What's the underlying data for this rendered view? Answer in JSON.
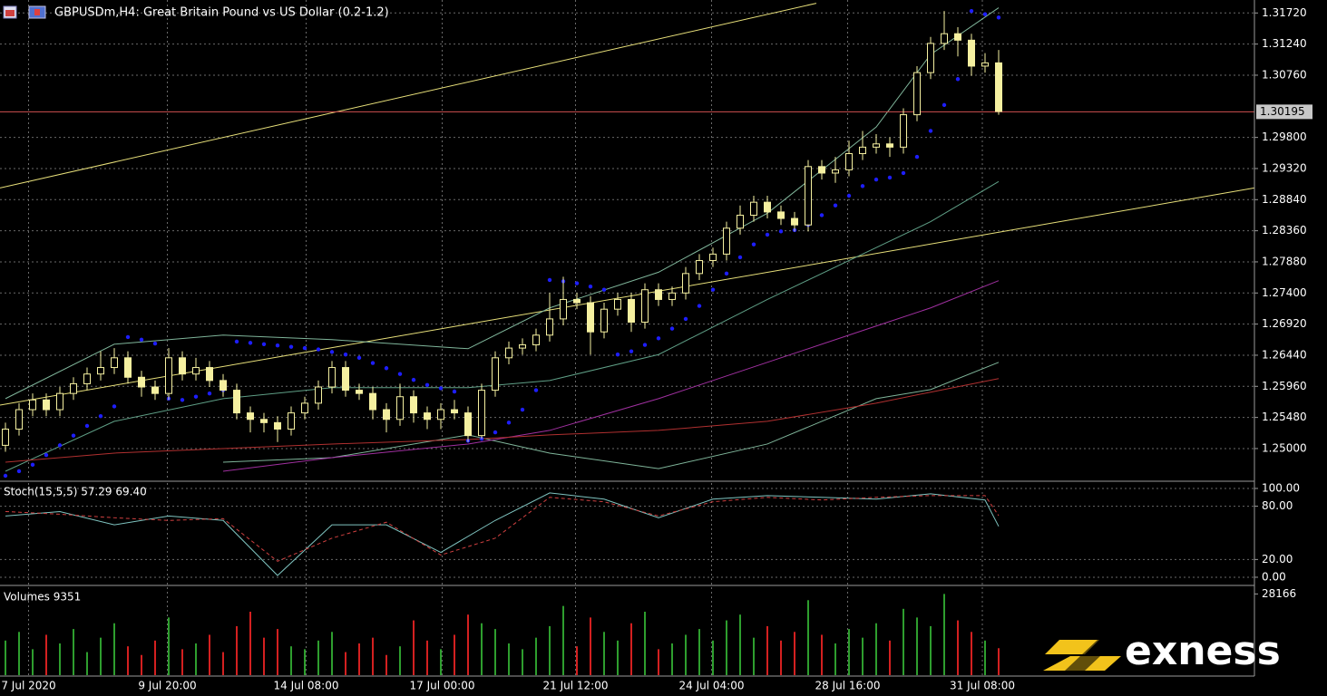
{
  "header": {
    "title": "GBPUSDm,H4:  Great Britain Pound vs US Dollar (0.2-1.2)"
  },
  "watermark": "exness",
  "chart_data": [
    {
      "type": "candlestick",
      "color": "#f5f0a0",
      "up_color": "#000000",
      "open": [
        1.2505,
        1.253,
        1.256,
        1.2575,
        1.256,
        1.2585,
        1.26,
        1.2615,
        1.2625,
        1.264,
        1.261,
        1.2595,
        1.2585,
        1.264,
        1.2615,
        1.2625,
        1.2605,
        1.259,
        1.2555,
        1.2545,
        1.254,
        1.253,
        1.2555,
        1.257,
        1.2595,
        1.2625,
        1.259,
        1.2585,
        1.256,
        1.2545,
        1.258,
        1.2555,
        1.2545,
        1.256,
        1.2555,
        1.252,
        1.259,
        1.264,
        1.2655,
        1.266,
        1.2675,
        1.27,
        1.273,
        1.2725,
        1.268,
        1.2715,
        1.273,
        1.2695,
        1.2745,
        1.273,
        1.274,
        1.277,
        1.279,
        1.28,
        1.284,
        1.286,
        1.288,
        1.2865,
        1.2855,
        1.2845,
        1.2935,
        1.2925,
        1.293,
        1.2955,
        1.2965,
        1.297,
        1.2965,
        1.3015,
        1.308,
        1.3125,
        1.314,
        1.313,
        1.309,
        1.3095
      ],
      "high": [
        1.254,
        1.257,
        1.2585,
        1.2585,
        1.2595,
        1.261,
        1.2625,
        1.265,
        1.2655,
        1.265,
        1.262,
        1.2605,
        1.2655,
        1.265,
        1.264,
        1.2635,
        1.2615,
        1.26,
        1.2565,
        1.2555,
        1.255,
        1.2565,
        1.258,
        1.2605,
        1.2635,
        1.2635,
        1.26,
        1.2595,
        1.257,
        1.26,
        1.259,
        1.2565,
        1.257,
        1.2575,
        1.2565,
        1.26,
        1.265,
        1.2665,
        1.267,
        1.2685,
        1.274,
        1.2765,
        1.274,
        1.2735,
        1.2725,
        1.274,
        1.274,
        1.2755,
        1.2755,
        1.275,
        1.278,
        1.28,
        1.281,
        1.285,
        1.2875,
        1.289,
        1.289,
        1.2875,
        1.2865,
        1.2945,
        1.2945,
        1.295,
        1.2975,
        1.299,
        1.2985,
        1.298,
        1.3025,
        1.309,
        1.3135,
        1.3175,
        1.315,
        1.314,
        1.311,
        1.3115
      ],
      "low": [
        1.2495,
        1.252,
        1.255,
        1.255,
        1.255,
        1.2575,
        1.259,
        1.2605,
        1.2615,
        1.26,
        1.258,
        1.2575,
        1.2575,
        1.2605,
        1.2605,
        1.2595,
        1.258,
        1.2545,
        1.2525,
        1.2525,
        1.251,
        1.252,
        1.2545,
        1.256,
        1.2585,
        1.258,
        1.2575,
        1.2545,
        1.2525,
        1.2535,
        1.254,
        1.253,
        1.253,
        1.2545,
        1.251,
        1.2515,
        1.258,
        1.263,
        1.2645,
        1.265,
        1.2665,
        1.269,
        1.2715,
        1.2645,
        1.267,
        1.2705,
        1.268,
        1.2685,
        1.272,
        1.272,
        1.273,
        1.276,
        1.278,
        1.279,
        1.283,
        1.285,
        1.2855,
        1.2845,
        1.2835,
        1.2835,
        1.2915,
        1.291,
        1.292,
        1.2945,
        1.2955,
        1.295,
        1.2955,
        1.3005,
        1.307,
        1.3115,
        1.3105,
        1.3075,
        1.308,
        1.3015
      ],
      "close": [
        1.253,
        1.256,
        1.2575,
        1.256,
        1.2585,
        1.26,
        1.2615,
        1.2625,
        1.264,
        1.261,
        1.2595,
        1.2585,
        1.264,
        1.2615,
        1.2625,
        1.2605,
        1.259,
        1.2555,
        1.2545,
        1.254,
        1.253,
        1.2555,
        1.257,
        1.2595,
        1.2625,
        1.259,
        1.2585,
        1.256,
        1.2545,
        1.258,
        1.2555,
        1.2545,
        1.256,
        1.2555,
        1.252,
        1.259,
        1.264,
        1.2655,
        1.266,
        1.2675,
        1.27,
        1.273,
        1.2725,
        1.268,
        1.2715,
        1.273,
        1.2695,
        1.2745,
        1.273,
        1.274,
        1.277,
        1.279,
        1.28,
        1.284,
        1.286,
        1.288,
        1.2865,
        1.2855,
        1.2845,
        1.2935,
        1.2925,
        1.293,
        1.2955,
        1.2965,
        1.297,
        1.2965,
        1.3015,
        1.308,
        1.3125,
        1.314,
        1.313,
        1.309,
        1.3095,
        1.302
      ],
      "xlim": [
        -0.4,
        91.8
      ],
      "xticks": [
        {
          "value": 1.7,
          "label": "7 Jul 2020"
        },
        {
          "value": 11.9,
          "label": "9 Jul 20:00"
        },
        {
          "value": 22.1,
          "label": "14 Jul 08:00"
        },
        {
          "value": 32.1,
          "label": "17 Jul 00:00"
        },
        {
          "value": 41.9,
          "label": "21 Jul 12:00"
        },
        {
          "value": 51.9,
          "label": "24 Jul 04:00"
        },
        {
          "value": 61.9,
          "label": "28 Jul 16:00"
        },
        {
          "value": 71.8,
          "label": "31 Jul 08:00"
        }
      ],
      "ylim": [
        1.2451,
        1.3192
      ],
      "yticks": [
        {
          "value": 1.3172,
          "label": "1.31720"
        },
        {
          "value": 1.3124,
          "label": "1.31240"
        },
        {
          "value": 1.3076,
          "label": "1.30760"
        },
        {
          "value": 1.298,
          "label": "1.29800"
        },
        {
          "value": 1.2932,
          "label": "1.29320"
        },
        {
          "value": 1.2884,
          "label": "1.28840"
        },
        {
          "value": 1.2836,
          "label": "1.28360"
        },
        {
          "value": 1.2788,
          "label": "1.27880"
        },
        {
          "value": 1.274,
          "label": "1.27400"
        },
        {
          "value": 1.2692,
          "label": "1.26920"
        },
        {
          "value": 1.2644,
          "label": "1.26440"
        },
        {
          "value": 1.2596,
          "label": "1.25960"
        },
        {
          "value": 1.2548,
          "label": "1.25480"
        },
        {
          "value": 1.25,
          "label": "1.25000"
        }
      ],
      "grid": true,
      "current_price": {
        "value": 1.30195,
        "label": "1.30195"
      },
      "current_price_color": "#d05050",
      "trendlines": [
        {
          "color": "#e8e07a",
          "x": [
            -0.4,
            59.6
          ],
          "values": [
            1.2902,
            1.3187
          ]
        },
        {
          "color": "#e8e07a",
          "x": [
            -0.4,
            91.8
          ],
          "values": [
            1.2567,
            1.2902
          ]
        }
      ],
      "overlays": {
        "x": [
          0,
          8,
          16,
          24,
          34,
          40,
          48,
          56,
          64,
          68,
          73
        ],
        "series": [
          {
            "color": "#7fb59a",
            "values": [
              1.2577,
              1.2661,
              1.2675,
              1.2668,
              1.2654,
              1.2717,
              1.2772,
              1.2863,
              1.2996,
              1.3108,
              1.318
            ]
          },
          {
            "color": "#5f9f86",
            "values": [
              1.2465,
              1.2542,
              1.2577,
              1.2594,
              1.2594,
              1.2605,
              1.2645,
              1.273,
              1.281,
              1.285,
              1.2912
            ]
          },
          {
            "color": "#7fb59a",
            "values": [
              null,
              null,
              1.2479,
              1.2486,
              1.2521,
              1.2493,
              1.2469,
              1.2507,
              1.2577,
              1.2591,
              1.2633
            ]
          },
          {
            "color": "#a030a0",
            "values": [
              null,
              null,
              1.2465,
              1.2486,
              1.2507,
              1.2528,
              1.2577,
              1.2633,
              1.2689,
              1.2717,
              1.2759
            ]
          },
          {
            "color": "#b03030",
            "values": [
              1.2479,
              1.2493,
              1.25,
              1.2507,
              1.2514,
              1.2521,
              1.2528,
              1.2542,
              1.257,
              1.2587,
              1.2608
            ]
          }
        ]
      },
      "sar": {
        "color": "#1e1eff",
        "values": [
          1.2458,
          1.2465,
          1.2475,
          1.249,
          1.2505,
          1.252,
          1.2535,
          1.255,
          1.2565,
          1.2672,
          1.2668,
          1.2662,
          1.2577,
          1.2575,
          1.258,
          1.2585,
          1.259,
          1.2665,
          1.2663,
          1.2661,
          1.2659,
          1.2657,
          1.2655,
          1.2653,
          1.2649,
          1.2645,
          1.264,
          1.2632,
          1.2624,
          1.2615,
          1.2606,
          1.2598,
          1.2593,
          1.2588,
          1.2512,
          1.2515,
          1.2525,
          1.254,
          1.256,
          1.259,
          1.276,
          1.2758,
          1.2755,
          1.275,
          1.2745,
          1.2645,
          1.265,
          1.266,
          1.267,
          1.2685,
          1.27,
          1.272,
          1.2745,
          1.277,
          1.2795,
          1.2815,
          1.283,
          1.2835,
          1.2837,
          1.2845,
          1.286,
          1.2875,
          1.289,
          1.2905,
          1.2915,
          1.2918,
          1.2925,
          1.295,
          1.299,
          1.303,
          1.307,
          1.3175,
          1.317,
          1.3165
        ]
      }
    },
    {
      "type": "line",
      "title": "Stoch(15,5,5) 57.29 69.40",
      "x": [
        0,
        4,
        8,
        12,
        16,
        20,
        24,
        28,
        32,
        36,
        40,
        44,
        48,
        52,
        56,
        60,
        64,
        68,
        72,
        73
      ],
      "series": [
        {
          "color": "#7fc4c0",
          "values": [
            69,
            74,
            59,
            69,
            64,
            2,
            59,
            59,
            28,
            64,
            95,
            88,
            67,
            88,
            92,
            90,
            88,
            94,
            87,
            57.29
          ]
        },
        {
          "color": "#d04040",
          "dashed": true,
          "values": [
            74,
            71,
            67,
            64,
            66,
            18,
            44,
            62,
            25,
            44,
            90,
            85,
            69,
            85,
            90,
            87,
            90,
            92,
            92,
            69.4
          ]
        }
      ],
      "ylim": [
        -8.2,
        106.1
      ],
      "yticks": [
        {
          "value": 100,
          "label": "100.00"
        },
        {
          "value": 80,
          "label": "80.00"
        },
        {
          "value": 20,
          "label": "20.00"
        },
        {
          "value": 0,
          "label": "0.00"
        }
      ]
    },
    {
      "type": "bar",
      "title": "Volumes 9351",
      "up_color": "#2e9e2e",
      "down_color": "#d42020",
      "values": [
        12000,
        15000,
        9000,
        14000,
        11000,
        16000,
        8000,
        13000,
        18000,
        10000,
        7000,
        12000,
        20000,
        9000,
        11000,
        14000,
        8000,
        17000,
        22000,
        13000,
        16000,
        10000,
        9000,
        12000,
        15000,
        8000,
        11000,
        13000,
        7000,
        10000,
        19000,
        12000,
        9000,
        14000,
        21000,
        18000,
        16000,
        11000,
        9000,
        13000,
        17000,
        24000,
        10000,
        20000,
        15000,
        12000,
        18000,
        22000,
        9000,
        11000,
        14000,
        16000,
        12000,
        19000,
        21000,
        13000,
        17000,
        12000,
        15000,
        26000,
        14000,
        11000,
        16000,
        13000,
        18000,
        12000,
        23000,
        20000,
        17000,
        28166,
        19000,
        15000,
        12000,
        9351
      ],
      "ylim": [
        0,
        30486
      ],
      "yticks": [
        28166
      ]
    }
  ]
}
